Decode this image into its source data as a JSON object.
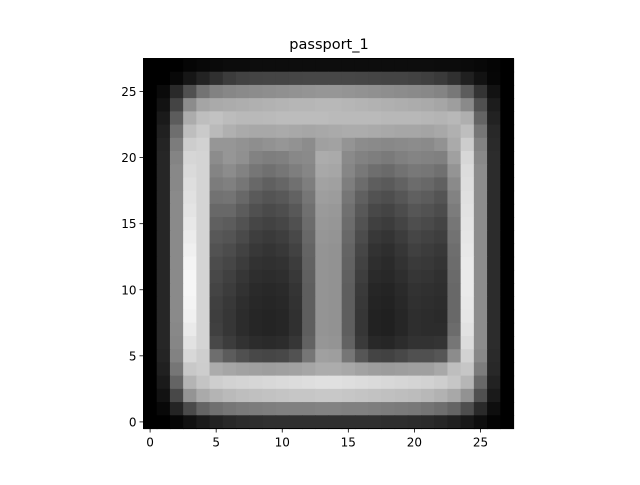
{
  "chart_data": {
    "type": "heatmap",
    "title": "passport_1",
    "xlabel": "",
    "ylabel": "",
    "colormap": "gray",
    "grid": false,
    "legend": "none",
    "xlim": [
      -0.5,
      27.5
    ],
    "ylim": [
      27.5,
      -0.5
    ],
    "xticks": [
      0,
      5,
      10,
      15,
      20,
      25
    ],
    "yticks": [
      0,
      5,
      10,
      15,
      20,
      25
    ],
    "xtick_labels": [
      "0",
      "5",
      "10",
      "15",
      "20",
      "25"
    ],
    "ytick_labels": [
      "0",
      "5",
      "10",
      "15",
      "20",
      "25"
    ],
    "value_range": [
      0,
      255
    ],
    "image": [
      [
        0,
        0,
        0,
        5,
        8,
        10,
        12,
        12,
        13,
        13,
        13,
        13,
        13,
        13,
        13,
        13,
        13,
        13,
        13,
        13,
        13,
        13,
        12,
        12,
        10,
        8,
        5,
        0
      ],
      [
        0,
        0,
        8,
        22,
        35,
        48,
        60,
        66,
        68,
        69,
        69,
        70,
        71,
        71,
        71,
        71,
        70,
        69,
        68,
        68,
        66,
        63,
        58,
        48,
        32,
        18,
        6,
        0
      ],
      [
        0,
        10,
        42,
        80,
        115,
        130,
        135,
        138,
        140,
        142,
        144,
        146,
        148,
        150,
        150,
        148,
        146,
        144,
        142,
        140,
        138,
        136,
        132,
        120,
        92,
        52,
        18,
        0
      ],
      [
        0,
        18,
        68,
        140,
        165,
        170,
        172,
        174,
        176,
        178,
        180,
        182,
        182,
        184,
        184,
        182,
        180,
        178,
        176,
        174,
        172,
        170,
        166,
        158,
        138,
        80,
        28,
        0
      ],
      [
        0,
        26,
        92,
        172,
        190,
        194,
        188,
        185,
        185,
        186,
        188,
        188,
        188,
        188,
        186,
        186,
        186,
        186,
        184,
        184,
        184,
        182,
        180,
        184,
        175,
        100,
        34,
        0
      ],
      [
        0,
        32,
        110,
        190,
        202,
        186,
        176,
        170,
        168,
        168,
        170,
        168,
        166,
        168,
        170,
        172,
        172,
        170,
        168,
        166,
        166,
        164,
        168,
        176,
        190,
        118,
        40,
        0
      ],
      [
        0,
        36,
        124,
        205,
        210,
        150,
        150,
        146,
        142,
        146,
        150,
        146,
        140,
        160,
        162,
        148,
        140,
        138,
        136,
        138,
        140,
        138,
        146,
        170,
        205,
        130,
        42,
        0
      ],
      [
        0,
        38,
        132,
        214,
        212,
        140,
        150,
        144,
        130,
        126,
        128,
        136,
        138,
        172,
        170,
        138,
        130,
        126,
        122,
        128,
        132,
        130,
        128,
        160,
        215,
        136,
        44,
        0
      ],
      [
        0,
        38,
        136,
        218,
        212,
        132,
        140,
        130,
        118,
        112,
        118,
        126,
        134,
        168,
        166,
        134,
        120,
        110,
        106,
        114,
        120,
        118,
        112,
        148,
        220,
        140,
        44,
        0
      ],
      [
        0,
        38,
        136,
        222,
        212,
        124,
        128,
        118,
        104,
        96,
        102,
        112,
        126,
        162,
        160,
        126,
        108,
        94,
        90,
        98,
        108,
        104,
        96,
        138,
        222,
        140,
        44,
        0
      ],
      [
        0,
        38,
        138,
        225,
        212,
        114,
        116,
        104,
        90,
        84,
        88,
        98,
        118,
        158,
        156,
        118,
        96,
        82,
        78,
        86,
        96,
        92,
        84,
        130,
        224,
        140,
        44,
        0
      ],
      [
        0,
        38,
        138,
        228,
        212,
        104,
        104,
        92,
        80,
        74,
        78,
        88,
        112,
        154,
        152,
        112,
        88,
        72,
        68,
        76,
        86,
        82,
        76,
        124,
        226,
        140,
        44,
        0
      ],
      [
        0,
        38,
        138,
        232,
        212,
        96,
        92,
        82,
        70,
        66,
        70,
        80,
        108,
        152,
        150,
        108,
        82,
        64,
        60,
        68,
        78,
        74,
        68,
        118,
        228,
        140,
        44,
        0
      ],
      [
        0,
        38,
        138,
        236,
        212,
        88,
        84,
        74,
        62,
        58,
        62,
        72,
        104,
        150,
        148,
        104,
        76,
        56,
        52,
        60,
        70,
        66,
        62,
        114,
        230,
        140,
        44,
        0
      ],
      [
        0,
        38,
        138,
        240,
        212,
        82,
        76,
        66,
        56,
        52,
        56,
        66,
        100,
        148,
        146,
        100,
        70,
        50,
        46,
        54,
        64,
        60,
        56,
        110,
        232,
        140,
        44,
        0
      ],
      [
        0,
        38,
        138,
        244,
        212,
        76,
        70,
        60,
        50,
        48,
        50,
        60,
        98,
        148,
        146,
        98,
        66,
        46,
        42,
        50,
        58,
        56,
        52,
        108,
        234,
        140,
        44,
        0
      ],
      [
        0,
        38,
        138,
        246,
        212,
        72,
        64,
        54,
        46,
        44,
        46,
        56,
        96,
        148,
        146,
        96,
        62,
        42,
        40,
        46,
        54,
        52,
        48,
        106,
        234,
        140,
        44,
        0
      ],
      [
        0,
        38,
        138,
        246,
        212,
        68,
        60,
        50,
        42,
        40,
        42,
        52,
        94,
        148,
        146,
        94,
        58,
        38,
        36,
        42,
        50,
        48,
        46,
        104,
        234,
        140,
        44,
        0
      ],
      [
        0,
        38,
        138,
        244,
        212,
        64,
        56,
        46,
        40,
        38,
        40,
        50,
        94,
        148,
        146,
        94,
        56,
        36,
        34,
        40,
        48,
        46,
        44,
        104,
        232,
        140,
        44,
        0
      ],
      [
        0,
        38,
        138,
        240,
        212,
        62,
        54,
        44,
        38,
        36,
        38,
        48,
        94,
        148,
        146,
        94,
        54,
        34,
        32,
        38,
        46,
        44,
        42,
        104,
        230,
        140,
        44,
        0
      ],
      [
        0,
        38,
        136,
        234,
        212,
        64,
        54,
        44,
        38,
        36,
        38,
        48,
        94,
        148,
        146,
        94,
        54,
        34,
        32,
        38,
        46,
        44,
        44,
        108,
        226,
        140,
        44,
        0
      ],
      [
        0,
        38,
        134,
        226,
        212,
        72,
        60,
        50,
        44,
        42,
        44,
        54,
        98,
        150,
        148,
        98,
        58,
        40,
        38,
        44,
        50,
        50,
        52,
        118,
        220,
        140,
        44,
        0
      ],
      [
        0,
        36,
        130,
        216,
        206,
        110,
        92,
        80,
        72,
        70,
        72,
        82,
        118,
        160,
        158,
        118,
        86,
        68,
        66,
        72,
        80,
        80,
        86,
        140,
        210,
        136,
        42,
        0
      ],
      [
        0,
        32,
        118,
        200,
        205,
        172,
        166,
        162,
        160,
        158,
        160,
        162,
        166,
        172,
        172,
        168,
        162,
        158,
        156,
        158,
        160,
        160,
        168,
        190,
        198,
        124,
        40,
        0
      ],
      [
        0,
        26,
        100,
        180,
        196,
        206,
        210,
        212,
        214,
        216,
        218,
        220,
        222,
        224,
        224,
        222,
        220,
        218,
        216,
        214,
        212,
        210,
        206,
        198,
        182,
        104,
        34,
        0
      ],
      [
        0,
        18,
        72,
        148,
        170,
        180,
        186,
        190,
        192,
        194,
        196,
        198,
        198,
        200,
        200,
        198,
        196,
        194,
        192,
        190,
        188,
        184,
        178,
        168,
        146,
        80,
        26,
        0
      ],
      [
        0,
        8,
        36,
        74,
        100,
        112,
        118,
        122,
        124,
        126,
        128,
        128,
        128,
        130,
        130,
        128,
        128,
        126,
        124,
        122,
        120,
        116,
        110,
        100,
        78,
        42,
        14,
        0
      ],
      [
        0,
        0,
        6,
        16,
        26,
        34,
        40,
        44,
        46,
        48,
        48,
        48,
        48,
        48,
        48,
        48,
        48,
        48,
        46,
        46,
        44,
        42,
        38,
        32,
        24,
        14,
        4,
        0
      ]
    ]
  }
}
